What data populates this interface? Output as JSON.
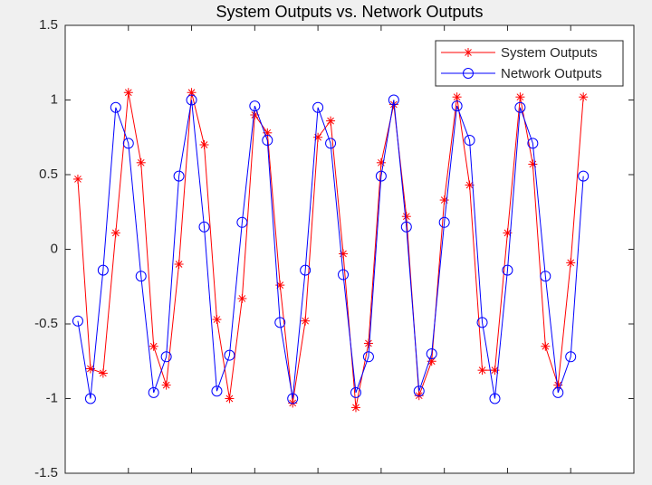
{
  "chart_data": {
    "type": "line",
    "title": "System Outputs vs. Network Outputs",
    "x": [
      1,
      2,
      3,
      4,
      5,
      6,
      7,
      8,
      9,
      10,
      11,
      12,
      13,
      14,
      15,
      16,
      17,
      18,
      19,
      20,
      21,
      22,
      23,
      24,
      25,
      26,
      27,
      28,
      29,
      30,
      31,
      32,
      33,
      34,
      35,
      36,
      37,
      38,
      39,
      40,
      41
    ],
    "series": [
      {
        "name": "System Outputs",
        "color": "#ff0000",
        "marker": "*",
        "values": [
          0.47,
          -0.8,
          -0.83,
          0.11,
          1.05,
          0.58,
          -0.65,
          -0.91,
          -0.1,
          1.05,
          0.7,
          -0.47,
          -1.0,
          -0.33,
          0.9,
          0.78,
          -0.24,
          -1.03,
          -0.48,
          0.75,
          0.86,
          -0.03,
          -1.06,
          -0.63,
          0.58,
          0.97,
          0.22,
          -0.98,
          -0.75,
          0.33,
          1.02,
          0.43,
          -0.81,
          -0.81,
          0.11,
          1.02,
          0.57,
          -0.65,
          -0.91,
          -0.09,
          1.02
        ]
      },
      {
        "name": "Network Outputs",
        "color": "#0000ff",
        "marker": "o",
        "values": [
          -0.48,
          -1.0,
          -0.14,
          0.95,
          0.71,
          -0.18,
          -0.96,
          -0.72,
          0.49,
          1.0,
          0.15,
          -0.95,
          -0.71,
          0.18,
          0.96,
          0.73,
          -0.49,
          -1.0,
          -0.14,
          0.95,
          0.71,
          -0.17,
          -0.96,
          -0.72,
          0.49,
          1.0,
          0.15,
          -0.95,
          -0.7,
          0.18,
          0.96,
          0.73,
          -0.49,
          -1.0,
          -0.14,
          0.95,
          0.71,
          -0.18,
          -0.96,
          -0.72,
          0.49
        ]
      }
    ],
    "xlim": [
      0,
      45
    ],
    "xticks": [
      5,
      10,
      15,
      20,
      25,
      30,
      35,
      40
    ],
    "ylim": [
      -1.5,
      1.5
    ],
    "yticks": [
      -1.5,
      -1,
      -0.5,
      0,
      0.5,
      1,
      1.5
    ],
    "legend": "northeast",
    "grid": false
  }
}
